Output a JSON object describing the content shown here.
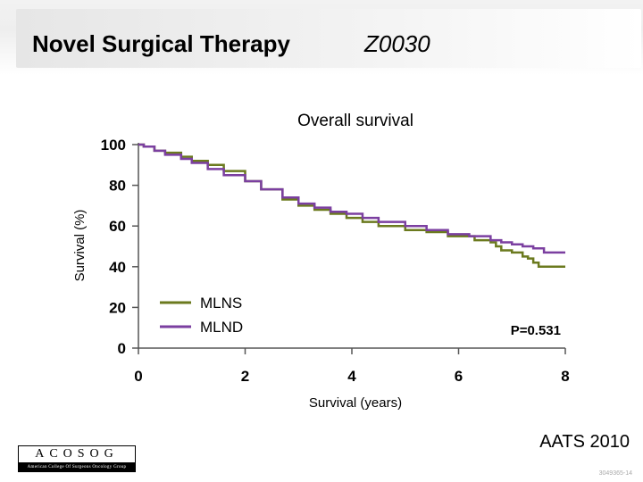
{
  "slide": {
    "title": "Novel Surgical Therapy",
    "trial_code": "Z0030",
    "footer_right": "AATS 2010",
    "slide_id": "3049365-14",
    "logo_letters": "ACOSOG",
    "logo_subtitle": "American College Of Surgeons Oncology Group"
  },
  "chart_data": {
    "type": "line",
    "title": "Overall survival",
    "xlabel": "Survival (years)",
    "ylabel": "Survival (%)",
    "xlim": [
      0,
      8
    ],
    "ylim": [
      0,
      100
    ],
    "xticks": [
      0,
      2,
      4,
      6,
      8
    ],
    "yticks": [
      0,
      20,
      40,
      60,
      80,
      100
    ],
    "grid": false,
    "legend": "lower-left",
    "annotation": "P=0.531",
    "series": [
      {
        "name": "MLNS",
        "color": "#6b7a1e",
        "step": true,
        "x": [
          0,
          0.1,
          0.3,
          0.5,
          0.8,
          1.0,
          1.3,
          1.6,
          2.0,
          2.3,
          2.7,
          3.0,
          3.3,
          3.6,
          3.9,
          4.2,
          4.5,
          5.0,
          5.4,
          5.8,
          6.3,
          6.6,
          6.7,
          6.8,
          7.0,
          7.2,
          7.3,
          7.4,
          7.5,
          8.0
        ],
        "y": [
          100,
          99,
          97,
          96,
          94,
          92,
          90,
          87,
          82,
          78,
          73,
          70,
          68,
          66,
          64,
          62,
          60,
          58,
          57,
          55,
          53,
          52,
          50,
          48,
          47,
          45,
          44,
          42,
          40,
          40
        ]
      },
      {
        "name": "MLND",
        "color": "#7b3fa0",
        "step": true,
        "x": [
          0,
          0.1,
          0.3,
          0.5,
          0.8,
          1.0,
          1.3,
          1.6,
          2.0,
          2.3,
          2.7,
          3.0,
          3.3,
          3.6,
          3.9,
          4.2,
          4.5,
          5.0,
          5.4,
          5.8,
          6.2,
          6.6,
          6.8,
          7.0,
          7.2,
          7.4,
          7.6,
          8.0
        ],
        "y": [
          100,
          99,
          97,
          95,
          93,
          91,
          88,
          85,
          82,
          78,
          74,
          71,
          69,
          67,
          66,
          64,
          62,
          60,
          58,
          56,
          55,
          53,
          52,
          51,
          50,
          49,
          47,
          47
        ]
      }
    ]
  }
}
